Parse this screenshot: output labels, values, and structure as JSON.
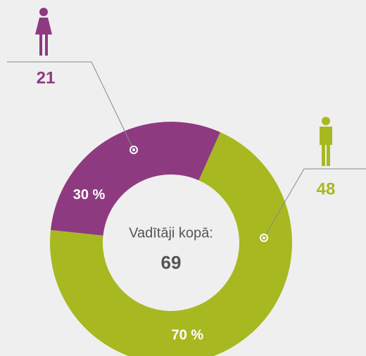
{
  "chart_data": {
    "type": "donut",
    "values": [
      30,
      70
    ],
    "value_labels": [
      "30 %",
      "70 %"
    ],
    "counts": [
      21,
      48
    ],
    "colors": [
      "#8e3a80",
      "#a8b820"
    ],
    "center_label": "Vadītāji kopā:",
    "total": 69
  }
}
